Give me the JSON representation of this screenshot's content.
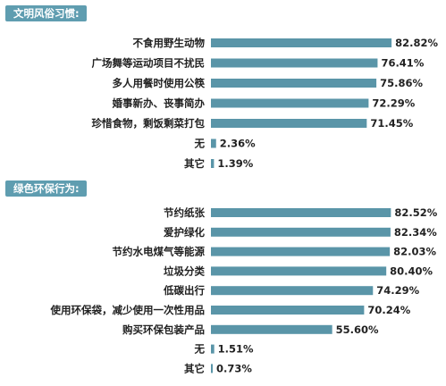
{
  "colors": {
    "bar": "#5a95a8",
    "badge": "#5f9db0"
  },
  "chart_data": [
    {
      "type": "bar",
      "orientation": "horizontal",
      "title": "文明风俗习惯:",
      "xlim": [
        0,
        100
      ],
      "categories": [
        "不食用野生动物",
        "广场舞等运动项目不扰民",
        "多人用餐时使用公筷",
        "婚事新办、丧事简办",
        "珍惜食物，剩饭剩菜打包",
        "无",
        "其它"
      ],
      "values": [
        82.82,
        76.41,
        75.86,
        72.29,
        71.45,
        2.36,
        1.39
      ],
      "value_labels": [
        "82.82%",
        "76.41%",
        "75.86%",
        "72.29%",
        "71.45%",
        "2.36%",
        "1.39%"
      ]
    },
    {
      "type": "bar",
      "orientation": "horizontal",
      "title": "绿色环保行为:",
      "xlim": [
        0,
        100
      ],
      "categories": [
        "节约纸张",
        "爱护绿化",
        "节约水电煤气等能源",
        "垃圾分类",
        "低碳出行",
        "使用环保袋，减少使用一次性用品",
        "购买环保包装产品",
        "无",
        "其它"
      ],
      "values": [
        82.52,
        82.34,
        82.03,
        80.4,
        74.29,
        70.24,
        55.6,
        1.51,
        0.73
      ],
      "value_labels": [
        "82.52%",
        "82.34%",
        "82.03%",
        "80.40%",
        "74.29%",
        "70.24%",
        "55.60%",
        "1.51%",
        "0.73%"
      ]
    }
  ]
}
